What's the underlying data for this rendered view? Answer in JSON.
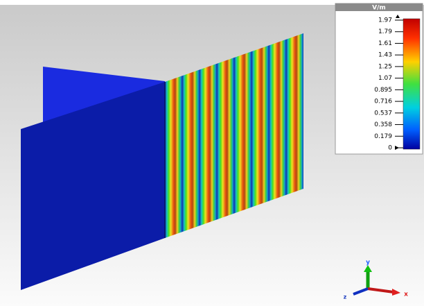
{
  "legend": {
    "unit": "V/m",
    "ticks": [
      "1.97",
      "1.79",
      "1.61",
      "1.43",
      "1.25",
      "1.07",
      "0.895",
      "0.716",
      "0.537",
      "0.358",
      "0.179",
      "0"
    ]
  },
  "axes": {
    "y": "y",
    "z": "z",
    "x": "x"
  }
}
